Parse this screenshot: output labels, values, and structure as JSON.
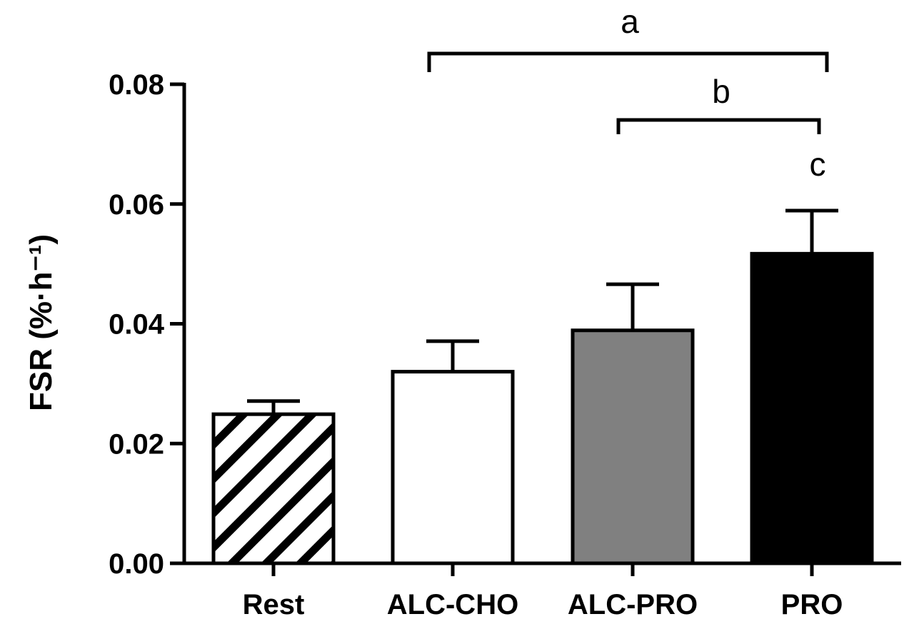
{
  "chart_data": {
    "type": "bar",
    "title": "",
    "xlabel": "",
    "ylabel": "FSR (%·h⁻¹)",
    "ylim": [
      0,
      0.08
    ],
    "yticks": [
      0,
      0.02,
      0.04,
      0.06,
      0.08
    ],
    "ytick_labels": [
      "0.00",
      "0.02",
      "0.04",
      "0.06",
      "0.08"
    ],
    "categories": [
      "Rest",
      "ALC-CHO",
      "ALC-PRO",
      "PRO"
    ],
    "values": [
      0.0249,
      0.032,
      0.0389,
      0.0517
    ],
    "error_upper": [
      0.0271,
      0.0371,
      0.0466,
      0.0589
    ],
    "fills": [
      "hatch",
      "#ffffff",
      "#808080",
      "#000000"
    ],
    "grid": false,
    "annotations": [
      {
        "label": "a",
        "type": "bracket",
        "from": "ALC-CHO",
        "to": "PRO"
      },
      {
        "label": "b",
        "type": "bracket",
        "from": "ALC-PRO",
        "to": "PRO"
      },
      {
        "label": "c",
        "type": "text",
        "over": "PRO"
      }
    ]
  }
}
